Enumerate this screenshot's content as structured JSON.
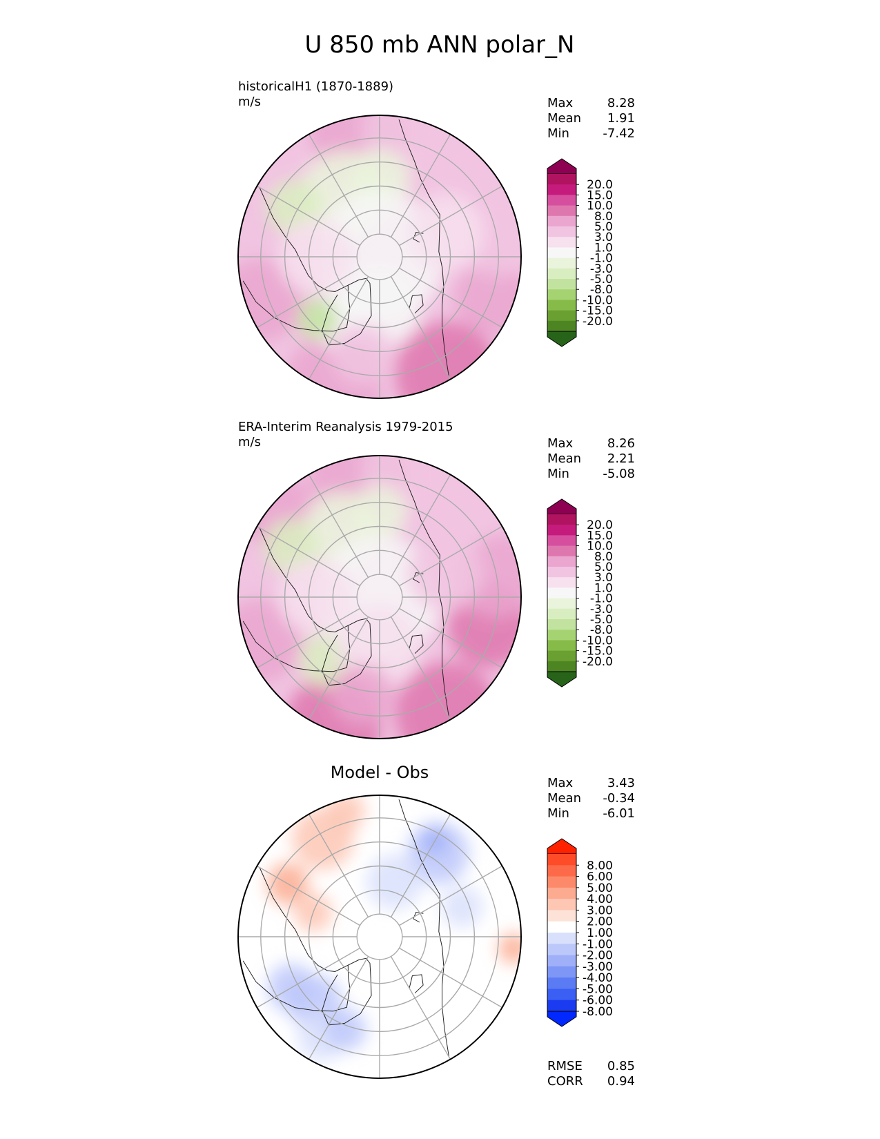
{
  "figure": {
    "title": "U 850 mb ANN polar_N"
  },
  "colors": {
    "land_outline": "#222222",
    "grid": "#aaaaaa",
    "border": "#000000"
  },
  "chart_data": [
    {
      "type": "heatmap",
      "projection": "north-polar-stereographic",
      "title": "",
      "label_left": "historicalH1 (1870-1889)",
      "units": "m/s",
      "stats": [
        {
          "label": "Max",
          "value": "8.28"
        },
        {
          "label": "Mean",
          "value": "1.91"
        },
        {
          "label": "Min",
          "value": "-7.42"
        }
      ],
      "colorbar": {
        "ticks": [
          "20.0",
          "15.0",
          "10.0",
          "8.0",
          "5.0",
          "3.0",
          "1.0",
          "-1.0",
          "-3.0",
          "-5.0",
          "-8.0",
          "-10.0",
          "-15.0",
          "-20.0"
        ],
        "colors": [
          "#8e0152",
          "#b0135f",
          "#c51b7d",
          "#d64f9f",
          "#de77ae",
          "#eaa6cf",
          "#f1c4e2",
          "#f7e1ee",
          "#f7f7f7",
          "#eaf4dc",
          "#d9eec0",
          "#c2e3a0",
          "#a6d372",
          "#87bb49",
          "#6a9f31",
          "#4d8522",
          "#276419"
        ],
        "extend": "both"
      }
    },
    {
      "type": "heatmap",
      "projection": "north-polar-stereographic",
      "title": "",
      "label_left": "ERA-Interim Reanalysis 1979-2015",
      "units": "m/s",
      "stats": [
        {
          "label": "Max",
          "value": "8.26"
        },
        {
          "label": "Mean",
          "value": "2.21"
        },
        {
          "label": "Min",
          "value": "-5.08"
        }
      ],
      "colorbar": {
        "ticks": [
          "20.0",
          "15.0",
          "10.0",
          "8.0",
          "5.0",
          "3.0",
          "1.0",
          "-1.0",
          "-3.0",
          "-5.0",
          "-8.0",
          "-10.0",
          "-15.0",
          "-20.0"
        ],
        "colors": [
          "#8e0152",
          "#b0135f",
          "#c51b7d",
          "#d64f9f",
          "#de77ae",
          "#eaa6cf",
          "#f1c4e2",
          "#f7e1ee",
          "#f7f7f7",
          "#eaf4dc",
          "#d9eec0",
          "#c2e3a0",
          "#a6d372",
          "#87bb49",
          "#6a9f31",
          "#4d8522",
          "#276419"
        ],
        "extend": "both"
      }
    },
    {
      "type": "heatmap",
      "projection": "north-polar-stereographic",
      "title": "Model - Obs",
      "label_left": "",
      "units": "",
      "stats": [
        {
          "label": "Max",
          "value": "3.43"
        },
        {
          "label": "Mean",
          "value": "-0.34"
        },
        {
          "label": "Min",
          "value": "-6.01"
        }
      ],
      "colorbar": {
        "ticks": [
          "8.00",
          "6.00",
          "5.00",
          "4.00",
          "3.00",
          "2.00",
          "1.00",
          "-1.00",
          "-2.00",
          "-3.00",
          "-4.00",
          "-5.00",
          "-6.00",
          "-8.00"
        ],
        "colors": [
          "#ff2200",
          "#fe4b28",
          "#fd6a4a",
          "#fc8a6a",
          "#fcab91",
          "#fdc7b4",
          "#fde2d8",
          "#ffffff",
          "#d9e0fb",
          "#bdc8fa",
          "#a0b0f8",
          "#7e96f6",
          "#5b7bf4",
          "#3a5ff2",
          "#1a3bf0",
          "#0028ff"
        ],
        "extend": "both"
      },
      "metrics": [
        {
          "label": "RMSE",
          "value": "0.85"
        },
        {
          "label": "CORR",
          "value": "0.94"
        }
      ]
    }
  ]
}
